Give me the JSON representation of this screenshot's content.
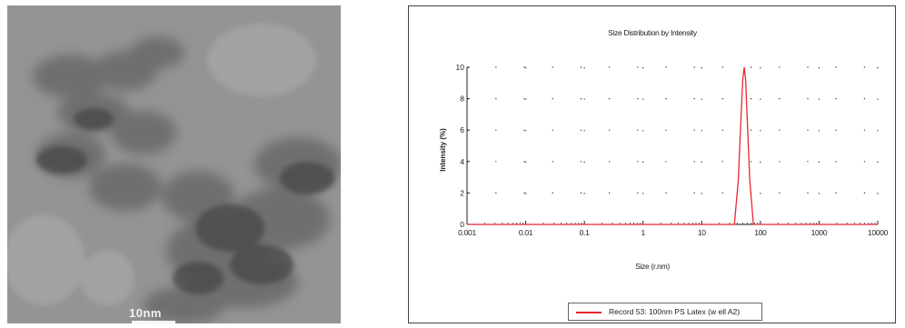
{
  "micrograph": {
    "scale_label": "10nm"
  },
  "chart_data": {
    "type": "line",
    "title": "Size Distribution by Intensity",
    "xlabel": "Size (r.nm)",
    "ylabel": "Intensity (%)",
    "x_scale": "log",
    "xlim": [
      0.001,
      10000
    ],
    "ylim": [
      0,
      10
    ],
    "x_ticks": [
      "0.001",
      "0.01",
      "0.1",
      "1",
      "10",
      "100",
      "1000",
      "10000"
    ],
    "y_ticks": [
      "0",
      "2",
      "4",
      "6",
      "8",
      "10"
    ],
    "grid": "dotted",
    "legend_position": "bottom",
    "series": [
      {
        "name": "Record 53: 100nm PS Latex (w ell A2)",
        "color": "#e8262e",
        "x": [
          0.001,
          30,
          36,
          42,
          46,
          50,
          53,
          56,
          60,
          66,
          76,
          10000
        ],
        "y": [
          0,
          0,
          0,
          2.8,
          6.2,
          9.2,
          10,
          9.2,
          6.5,
          2.8,
          0,
          0
        ]
      }
    ]
  }
}
